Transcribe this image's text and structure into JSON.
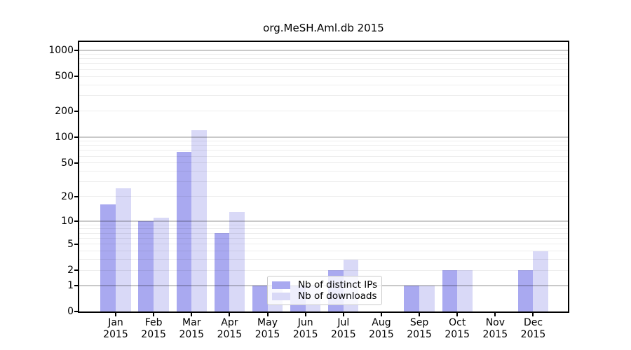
{
  "chart_data": {
    "type": "bar",
    "title": "org.MeSH.Aml.db 2015",
    "scale": "log1p",
    "grid": true,
    "legend_position": "inside-bottom-center",
    "x_months": [
      "Jan",
      "Feb",
      "Mar",
      "Apr",
      "May",
      "Jun",
      "Jul",
      "Aug",
      "Sep",
      "Oct",
      "Nov",
      "Dec"
    ],
    "x_year": "2015",
    "y_ticks": [
      0,
      1,
      2,
      5,
      10,
      20,
      50,
      100,
      200,
      500,
      1000
    ],
    "ylim": [
      0,
      1290
    ],
    "series": [
      {
        "name": "Nb of distinct IPs",
        "color": "#a9a9f0",
        "values": [
          16,
          10,
          67,
          7,
          1,
          1,
          2,
          0,
          1,
          2,
          0,
          2
        ]
      },
      {
        "name": "Nb of downloads",
        "color": "#d9d9f7",
        "values": [
          25,
          11,
          120,
          13,
          1,
          1,
          3,
          0,
          1,
          2,
          0,
          4
        ]
      }
    ]
  }
}
